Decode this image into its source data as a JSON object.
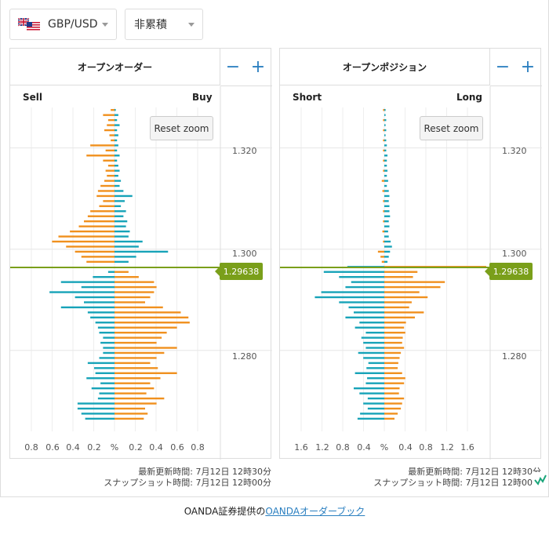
{
  "selectors": {
    "pair": "GBP/USD",
    "mode": "非累積"
  },
  "order_panel": {
    "title": "オープンオーダー",
    "left_label": "Sell",
    "right_label": "Buy",
    "reset_zoom": "Reset zoom",
    "y_ticks": [
      "1.320",
      "1.300",
      "1.280"
    ],
    "x_ticks": [
      "0.8",
      "0.6",
      "0.4",
      "0.2",
      "%",
      "0.2",
      "0.4",
      "0.6",
      "0.8"
    ],
    "price_tag": "1.29638",
    "updated": "最新更新時間: 7月12日 12時30分",
    "snapshot": "スナップショット時間: 7月12日 12時00分"
  },
  "position_panel": {
    "title": "オープンポジション",
    "left_label": "Short",
    "right_label": "Long",
    "reset_zoom": "Reset zoom",
    "y_ticks": [
      "1.320",
      "1.300",
      "1.280"
    ],
    "x_ticks": [
      "1.6",
      "1.2",
      "0.8",
      "0.4",
      "%",
      "0.4",
      "0.8",
      "1.2",
      "1.6"
    ],
    "price_tag": "1.29638",
    "updated": "最新更新時間: 7月12日 12時30分",
    "snapshot": "スナップショット時間: 7月12日 12時00分"
  },
  "zoom": {
    "minus": "−",
    "plus": "+"
  },
  "footer": {
    "prefix": "OANDA証券提供の",
    "link": "OANDAオーダーブック"
  },
  "colors": {
    "orange": "#f0901e",
    "teal": "#17a3b8",
    "price_line": "#7a9f1a",
    "accent": "#2a7fc0"
  },
  "chart_data": [
    {
      "type": "bar",
      "title": "オープンオーダー",
      "orientation": "horizontal",
      "y_axis": "price",
      "ylim": [
        1.264,
        1.328
      ],
      "xlim_percent": [
        -0.8,
        0.8
      ],
      "current_price": 1.29638,
      "series": [
        {
          "name": "Sell",
          "color": "#f0901e",
          "side": "left",
          "levels": [
            1.3275,
            1.3265,
            1.3255,
            1.3245,
            1.3235,
            1.3225,
            1.3215,
            1.3205,
            1.3195,
            1.3185,
            1.3175,
            1.3165,
            1.3155,
            1.3145,
            1.3135,
            1.3125,
            1.3115,
            1.3105,
            1.3095,
            1.3085,
            1.3075,
            1.3065,
            1.3055,
            1.3045,
            1.3035,
            1.3025,
            1.3015,
            1.3005,
            1.2995,
            1.2985,
            1.2975
          ],
          "values": [
            0.03,
            0.09,
            0.05,
            0.06,
            0.08,
            0.04,
            0.03,
            0.19,
            0.07,
            0.22,
            0.09,
            0.05,
            0.07,
            0.06,
            0.08,
            0.11,
            0.13,
            0.14,
            0.09,
            0.12,
            0.19,
            0.21,
            0.24,
            0.28,
            0.35,
            0.44,
            0.49,
            0.38,
            0.31,
            0.26,
            0.22
          ]
        },
        {
          "name": "Buy",
          "color": "#f0901e",
          "side": "right",
          "levels": [
            1.2955,
            1.2945,
            1.2935,
            1.2925,
            1.2915,
            1.2905,
            1.2895,
            1.2885,
            1.2875,
            1.2865,
            1.2855,
            1.2845,
            1.2835,
            1.2825,
            1.2815,
            1.2805,
            1.2795,
            1.2785,
            1.2775,
            1.2765,
            1.2755,
            1.2745,
            1.2735,
            1.2725,
            1.2715,
            1.2705,
            1.2695,
            1.2685,
            1.2675,
            1.2665
          ],
          "values": [
            0.11,
            0.19,
            0.31,
            0.33,
            0.31,
            0.28,
            0.24,
            0.38,
            0.52,
            0.58,
            0.59,
            0.49,
            0.41,
            0.37,
            0.33,
            0.49,
            0.39,
            0.33,
            0.28,
            0.34,
            0.49,
            0.36,
            0.28,
            0.31,
            0.25,
            0.39,
            0.33,
            0.24,
            0.26,
            0.23
          ]
        },
        {
          "name": "Sell stop",
          "color": "#17a3b8",
          "side": "left",
          "levels": [
            1.2955,
            1.2945,
            1.2935,
            1.2925,
            1.2915,
            1.2905,
            1.2895,
            1.2885,
            1.2875,
            1.2865,
            1.2855,
            1.2845,
            1.2835,
            1.2825,
            1.2815,
            1.2805,
            1.2795,
            1.2785,
            1.2775,
            1.2765,
            1.2755,
            1.2745,
            1.2735,
            1.2725,
            1.2715,
            1.2705,
            1.2695,
            1.2685,
            1.2675,
            1.2665
          ],
          "values": [
            0.05,
            0.17,
            0.42,
            0.26,
            0.51,
            0.31,
            0.24,
            0.42,
            0.21,
            0.19,
            0.15,
            0.13,
            0.12,
            0.09,
            0.11,
            0.09,
            0.09,
            0.12,
            0.21,
            0.16,
            0.15,
            0.22,
            0.11,
            0.18,
            0.12,
            0.13,
            0.29,
            0.29,
            0.26,
            0.23
          ]
        },
        {
          "name": "Buy stop",
          "color": "#17a3b8",
          "side": "right",
          "levels": [
            1.3275,
            1.3265,
            1.3255,
            1.3245,
            1.3235,
            1.3225,
            1.3215,
            1.3205,
            1.3195,
            1.3185,
            1.3175,
            1.3165,
            1.3155,
            1.3145,
            1.3135,
            1.3125,
            1.3115,
            1.3105,
            1.3095,
            1.3085,
            1.3075,
            1.3065,
            1.3055,
            1.3045,
            1.3035,
            1.3025,
            1.3015,
            1.3005,
            1.2995,
            1.2985,
            1.2975
          ],
          "values": [
            0.01,
            0.03,
            0.02,
            0.04,
            0.02,
            0.03,
            0.02,
            0.03,
            0.02,
            0.04,
            0.02,
            0.03,
            0.04,
            0.03,
            0.05,
            0.04,
            0.07,
            0.14,
            0.08,
            0.05,
            0.09,
            0.07,
            0.1,
            0.09,
            0.12,
            0.11,
            0.22,
            0.19,
            0.42,
            0.17,
            0.11
          ]
        }
      ]
    },
    {
      "type": "bar",
      "title": "オープンポジション",
      "orientation": "horizontal",
      "y_axis": "price",
      "ylim": [
        1.264,
        1.328
      ],
      "xlim_percent": [
        -1.6,
        1.6
      ],
      "current_price": 1.29638,
      "series": [
        {
          "name": "Short loss",
          "color": "#f0901e",
          "side": "left",
          "levels": [
            1.3275,
            1.3255,
            1.3235,
            1.3215,
            1.3195,
            1.3175,
            1.3155,
            1.3135,
            1.3115,
            1.3095,
            1.3075,
            1.3055,
            1.3035,
            1.3015,
            1.2995,
            1.2985,
            1.2975
          ],
          "values": [
            0.02,
            0.02,
            0.02,
            0.02,
            0.02,
            0.02,
            0.02,
            0.04,
            0.03,
            0.02,
            0.02,
            0.02,
            0.03,
            0.02,
            0.1,
            0.06,
            0.04
          ]
        },
        {
          "name": "Long profit",
          "color": "#f0901e",
          "side": "right",
          "levels": [
            1.2965,
            1.2955,
            1.2945,
            1.2935,
            1.2925,
            1.2915,
            1.2905,
            1.2895,
            1.2885,
            1.2875,
            1.2865,
            1.2855,
            1.2845,
            1.2835,
            1.2825,
            1.2815,
            1.2805,
            1.2795,
            1.2785,
            1.2775,
            1.2765,
            1.2755,
            1.2745,
            1.2735,
            1.2725,
            1.2715,
            1.2705,
            1.2695,
            1.2685,
            1.2675,
            1.2665
          ],
          "values": [
            1.6,
            0.52,
            0.45,
            0.95,
            0.88,
            0.55,
            0.68,
            0.43,
            0.39,
            0.62,
            0.48,
            0.34,
            0.31,
            0.33,
            0.29,
            0.28,
            0.31,
            0.26,
            0.24,
            0.22,
            0.21,
            0.28,
            0.33,
            0.31,
            0.24,
            0.23,
            0.31,
            0.28,
            0.26,
            0.21,
            0.16
          ]
        },
        {
          "name": "Short profit",
          "color": "#17a3b8",
          "side": "left",
          "levels": [
            1.2965,
            1.2955,
            1.2945,
            1.2935,
            1.2925,
            1.2915,
            1.2905,
            1.2895,
            1.2885,
            1.2875,
            1.2865,
            1.2855,
            1.2845,
            1.2835,
            1.2825,
            1.2815,
            1.2805,
            1.2795,
            1.2785,
            1.2775,
            1.2765,
            1.2755,
            1.2745,
            1.2735,
            1.2725,
            1.2715,
            1.2705,
            1.2695,
            1.2685,
            1.2675,
            1.2665
          ],
          "values": [
            0.58,
            0.95,
            0.71,
            0.52,
            0.61,
            0.99,
            1.09,
            0.71,
            0.56,
            0.48,
            0.61,
            0.39,
            0.46,
            0.29,
            0.36,
            0.33,
            0.29,
            0.41,
            0.33,
            0.25,
            0.28,
            0.46,
            0.27,
            0.29,
            0.48,
            0.39,
            0.26,
            0.33,
            0.26,
            0.38,
            0.42
          ]
        },
        {
          "name": "Long loss",
          "color": "#17a3b8",
          "side": "right",
          "levels": [
            1.3275,
            1.3265,
            1.3255,
            1.3245,
            1.3235,
            1.3225,
            1.3215,
            1.3205,
            1.3195,
            1.3185,
            1.3175,
            1.3165,
            1.3155,
            1.3145,
            1.3135,
            1.3125,
            1.3115,
            1.3105,
            1.3095,
            1.3085,
            1.3075,
            1.3065,
            1.3055,
            1.3045,
            1.3035,
            1.3025,
            1.3015,
            1.3005,
            1.2995,
            1.2985,
            1.2975
          ],
          "values": [
            0.02,
            0.02,
            0.03,
            0.02,
            0.03,
            0.02,
            0.03,
            0.04,
            0.03,
            0.05,
            0.04,
            0.04,
            0.05,
            0.04,
            0.06,
            0.04,
            0.07,
            0.08,
            0.07,
            0.08,
            0.08,
            0.09,
            0.07,
            0.08,
            0.06,
            0.07,
            0.1,
            0.12,
            0.09,
            0.07,
            0.05
          ]
        }
      ]
    }
  ]
}
